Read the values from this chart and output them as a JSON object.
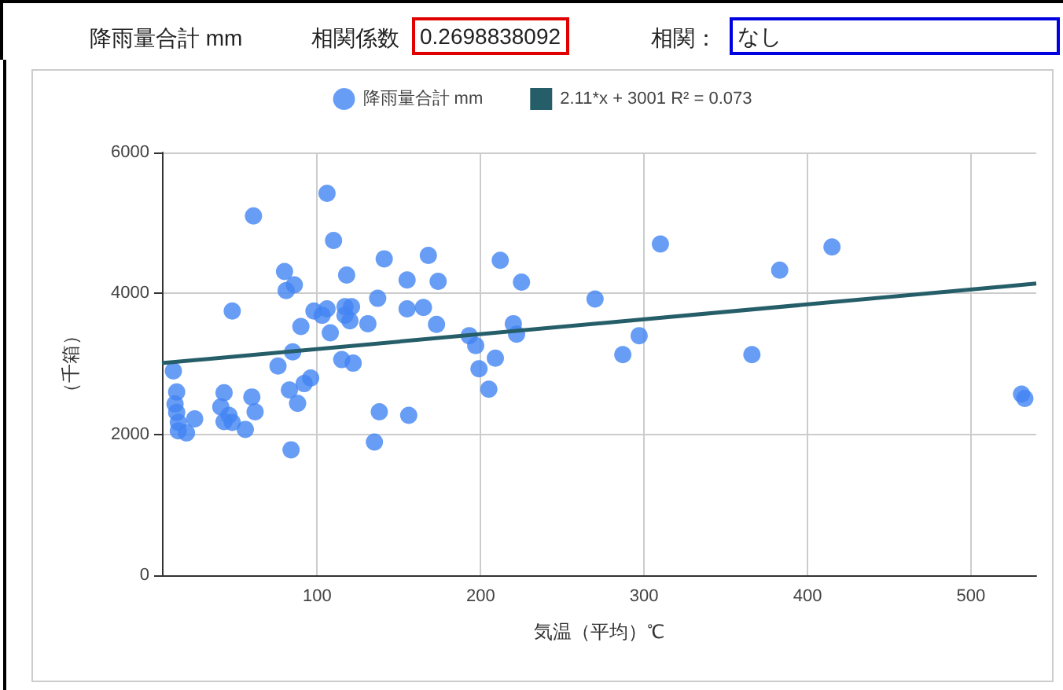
{
  "chart_data": {
    "type": "scatter",
    "xlabel": "気温（平均）℃",
    "ylabel": "（千箱）",
    "annotations": [
      "降雨量合計 mm",
      "相関係数",
      "0.2698838092",
      "相関：",
      "なし"
    ],
    "xlim": [
      5,
      540
    ],
    "xticks": [
      100,
      200,
      300,
      400,
      500
    ],
    "ylim": [
      0,
      6000
    ],
    "yticks": [
      0,
      2000,
      4000,
      6000
    ],
    "grid": true,
    "legend": "top",
    "marker": "circle",
    "series": [
      {
        "name": "降雨量合計 mm",
        "color": "#4285f4",
        "x": [
          106,
          61,
          110,
          141,
          168,
          80,
          118,
          155,
          174,
          86,
          81,
          137,
          48,
          98,
          103,
          106,
          117,
          121,
          117,
          120,
          155,
          165,
          173,
          131,
          90,
          108,
          85,
          76,
          115,
          122,
          12,
          96,
          92,
          83,
          88,
          14,
          13,
          14,
          15,
          15,
          20,
          25,
          43,
          41,
          46,
          43,
          48,
          60,
          62,
          56,
          84,
          138,
          156,
          135,
          310,
          415,
          383,
          212,
          225,
          270,
          220,
          222,
          193,
          197,
          209,
          199,
          205,
          287,
          297,
          366,
          531,
          533
        ],
        "values": [
          5420,
          5100,
          4750,
          4490,
          4540,
          4310,
          4260,
          4190,
          4170,
          4120,
          4040,
          3930,
          3750,
          3750,
          3690,
          3780,
          3810,
          3810,
          3690,
          3610,
          3780,
          3800,
          3560,
          3570,
          3530,
          3440,
          3170,
          2970,
          3060,
          3010,
          2900,
          2800,
          2720,
          2630,
          2440,
          2600,
          2430,
          2310,
          2170,
          2050,
          2020,
          2220,
          2590,
          2390,
          2270,
          2180,
          2170,
          2530,
          2320,
          2070,
          1780,
          2320,
          2270,
          1890,
          4700,
          4660,
          4330,
          4470,
          4160,
          3920,
          3570,
          3420,
          3400,
          3260,
          3080,
          2930,
          2640,
          3130,
          3400,
          3130,
          2570,
          2510
        ]
      },
      {
        "name": "2.11*x + 3001 R² = 0.073",
        "type": "line",
        "color": "#255e69",
        "marker": "none",
        "line_style": "solid",
        "x": [
          5,
          540
        ],
        "values": [
          3010,
          4140
        ]
      }
    ]
  }
}
